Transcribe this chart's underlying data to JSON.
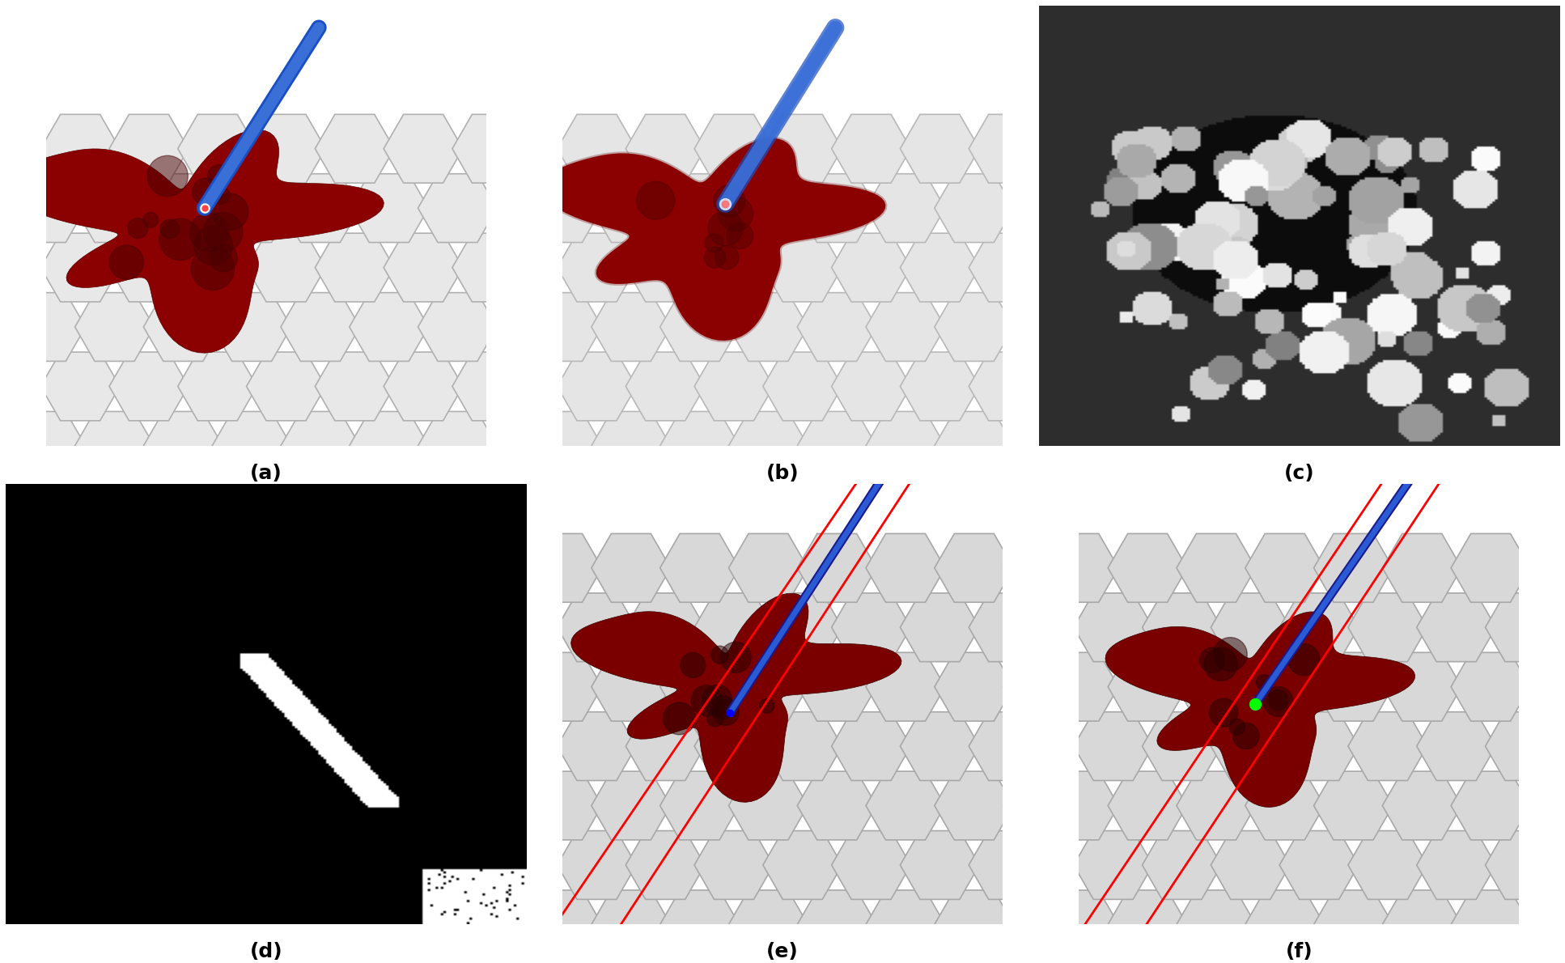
{
  "labels": [
    "(a)",
    "(b)",
    "(c)",
    "(d)",
    "(e)",
    "(f)"
  ],
  "label_fontsize": 18,
  "figure_bg": "#ffffff",
  "grid_rows": 2,
  "grid_cols": 3,
  "figsize": [
    19.34,
    11.9
  ],
  "dpi": 100
}
